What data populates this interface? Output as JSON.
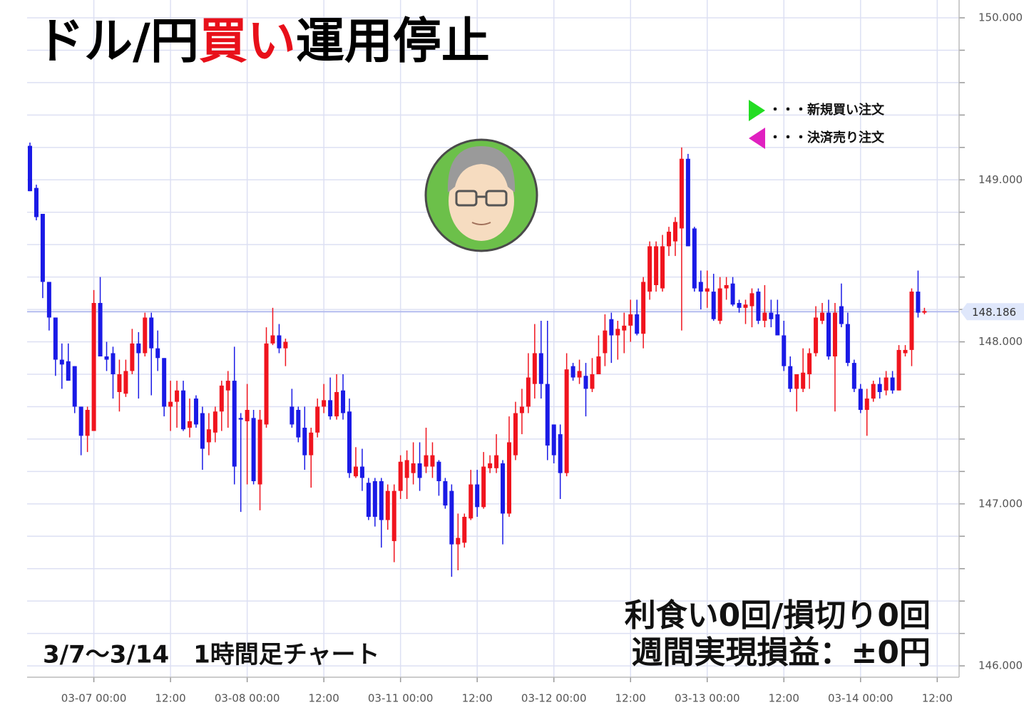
{
  "chart_data": {
    "type": "candlestick",
    "title_parts": [
      "ドル/円",
      "買い",
      "運用停止"
    ],
    "subtitle": "3/7～3/14　1時間足チャート",
    "annotations": [
      "利食い0回/損切り0回",
      "週間実現損益：±0円"
    ],
    "legend": [
      {
        "label": "・・・新規買い注文",
        "color": "#22dd22"
      },
      {
        "label": "・・・決済売り注文",
        "color": "#e020c0"
      }
    ],
    "up_color": "#f0141e",
    "down_color": "#1a1ae6",
    "current_price": 148.186,
    "ylim": [
      145.93,
      150.11
    ],
    "yticks": [
      {
        "value": 146,
        "label": "146.000"
      },
      {
        "value": 147,
        "label": "147.000"
      },
      {
        "value": 148,
        "label": "148.000"
      },
      {
        "value": 149,
        "label": "149.000"
      },
      {
        "value": 150,
        "label": "150.000"
      }
    ],
    "ygrid": [
      146.2,
      146.4,
      146.6,
      146.8,
      147.2,
      147.4,
      147.6,
      147.8,
      148.2,
      148.4,
      148.6,
      148.8,
      149.2,
      149.4,
      149.6,
      149.8
    ],
    "grid": true,
    "categories": [
      null,
      null,
      null,
      null,
      null,
      null,
      null,
      null,
      null,
      null,
      "03-07 00:00",
      null,
      null,
      null,
      null,
      null,
      null,
      null,
      null,
      null,
      null,
      null,
      "12:00",
      null,
      null,
      null,
      null,
      null,
      null,
      null,
      null,
      null,
      null,
      null,
      "03-08 00:00",
      null,
      null,
      null,
      null,
      null,
      null,
      null,
      null,
      null,
      null,
      null,
      "12:00",
      null,
      null,
      null,
      null,
      null,
      null,
      null,
      null,
      null,
      null,
      null,
      "03-11 00:00",
      null,
      null,
      null,
      null,
      null,
      null,
      null,
      null,
      null,
      null,
      null,
      "12:00",
      null,
      null,
      null,
      null,
      null,
      null,
      null,
      null,
      null,
      null,
      null,
      "03-12 00:00",
      null,
      null,
      null,
      null,
      null,
      null,
      null,
      null,
      null,
      null,
      null,
      "12:00",
      null,
      null,
      null,
      null,
      null,
      null,
      null,
      null,
      null,
      null,
      null,
      "03-13 00:00",
      null,
      null,
      null,
      null,
      null,
      null,
      null,
      null,
      null,
      null,
      null,
      "12:00",
      null,
      null,
      null,
      null,
      null,
      null,
      null,
      null,
      null,
      null,
      null,
      "03-14 00:00",
      null,
      null,
      null,
      null,
      null,
      null,
      null,
      null,
      null,
      null,
      null,
      "12:00",
      null
    ],
    "open": [
      149.21,
      148.95,
      148.79,
      148.37,
      148.15,
      147.89,
      147.88,
      147.85,
      147.6,
      147.42,
      147.45,
      148.24,
      147.91,
      147.93,
      147.69,
      147.68,
      147.82,
      147.99,
      147.93,
      148.15,
      147.96,
      147.9,
      147.6,
      147.63,
      147.7,
      147.47,
      147.65,
      147.56,
      147.38,
      147.44,
      147.57,
      147.7,
      147.76,
      147.53,
      147.51,
      147.53,
      147.12,
      147.49,
      147.99,
      148.04,
      147.96,
      147.6,
      147.58,
      147.47,
      147.3,
      147.44,
      147.6,
      147.64,
      147.54,
      147.7,
      147.57,
      147.17,
      147.23,
      147.13,
      147.14,
      147.14,
      146.9,
      146.77,
      147.08,
      147.16,
      147.19,
      147.25,
      147.23,
      147.23,
      147.26,
      147.14,
      147.08,
      146.75,
      146.76,
      146.91,
      147.12,
      146.98,
      147.22,
      147.22,
      147.25,
      146.94,
      147.3,
      147.56,
      147.6,
      147.74,
      147.93,
      147.74,
      147.49,
      147.43,
      147.19,
      147.85,
      147.78,
      147.79,
      147.71,
      147.8,
      147.93,
      148.14,
      148.04,
      148.07,
      148.1,
      148.17,
      148.05,
      148.31,
      148.35,
      148.33,
      148.59,
      148.62,
      148.7,
      149.13,
      148.7,
      148.37,
      148.31,
      148.31,
      148.13,
      148.33,
      148.36,
      148.24,
      148.21,
      148.22,
      148.31,
      148.13,
      148.18,
      148.17,
      148.04,
      147.85,
      147.71,
      147.71,
      147.8,
      147.93,
      148.13,
      148.18,
      147.91,
      148.22,
      148.11,
      147.87,
      147.71,
      147.58,
      147.65,
      147.74,
      147.7,
      147.78,
      147.7,
      147.93,
      147.95,
      148.31,
      148.18,
      null,
      null,
      null
    ],
    "high": [
      149.23,
      148.97,
      148.79,
      148.37,
      148.15,
      147.99,
      147.99,
      147.85,
      147.6,
      147.6,
      148.32,
      148.4,
      148.0,
      147.97,
      147.89,
      147.89,
      148.08,
      148.06,
      148.18,
      148.18,
      148.07,
      147.9,
      147.76,
      147.76,
      147.76,
      147.65,
      147.67,
      147.6,
      147.56,
      147.6,
      147.76,
      147.82,
      147.97,
      147.56,
      147.74,
      147.58,
      147.58,
      148.09,
      148.21,
      148.11,
      148.02,
      147.71,
      147.6,
      147.6,
      147.47,
      147.65,
      147.74,
      147.78,
      147.8,
      147.8,
      147.65,
      147.35,
      147.34,
      147.16,
      147.16,
      147.16,
      147.12,
      147.12,
      147.3,
      147.33,
      147.38,
      147.38,
      147.47,
      147.38,
      147.27,
      147.16,
      147.12,
      146.94,
      146.94,
      147.21,
      147.21,
      147.32,
      147.3,
      147.43,
      147.27,
      147.54,
      147.63,
      147.71,
      147.93,
      148.11,
      148.13,
      148.13,
      147.49,
      147.49,
      147.93,
      147.87,
      147.89,
      147.87,
      147.9,
      148.04,
      148.17,
      148.18,
      148.13,
      148.18,
      148.26,
      148.26,
      148.4,
      148.62,
      148.62,
      148.66,
      148.71,
      148.77,
      149.2,
      149.16,
      148.71,
      148.44,
      148.44,
      148.42,
      148.4,
      148.4,
      148.4,
      148.26,
      148.26,
      148.33,
      148.33,
      148.35,
      148.26,
      148.26,
      148.13,
      147.91,
      147.8,
      147.96,
      147.96,
      148.22,
      148.24,
      148.26,
      148.24,
      148.36,
      148.18,
      147.89,
      147.74,
      147.71,
      147.76,
      147.78,
      147.82,
      147.82,
      147.98,
      147.98,
      148.33,
      148.44,
      148.21,
      null,
      null,
      null
    ],
    "low": [
      148.93,
      148.75,
      148.27,
      148.07,
      147.79,
      147.71,
      147.76,
      147.56,
      147.3,
      147.32,
      147.45,
      147.91,
      147.82,
      147.65,
      147.57,
      147.66,
      147.8,
      147.65,
      147.91,
      147.67,
      147.82,
      147.54,
      147.45,
      147.47,
      147.45,
      147.41,
      147.47,
      147.21,
      147.3,
      147.38,
      147.45,
      147.47,
      147.12,
      146.95,
      147.12,
      147.12,
      146.96,
      147.47,
      147.98,
      147.93,
      147.85,
      147.47,
      147.38,
      147.21,
      147.1,
      147.41,
      147.56,
      147.52,
      147.52,
      147.52,
      147.16,
      147.16,
      147.08,
      146.9,
      146.86,
      146.73,
      146.84,
      146.64,
      147.03,
      147.03,
      147.12,
      147.08,
      147.19,
      147.16,
      147.05,
      146.97,
      146.55,
      146.59,
      146.73,
      146.9,
      146.92,
      146.97,
      147.19,
      147.19,
      146.75,
      146.92,
      147.27,
      147.43,
      147.56,
      147.65,
      147.65,
      147.27,
      147.25,
      147.03,
      147.17,
      147.76,
      147.74,
      147.54,
      147.69,
      147.8,
      147.85,
      147.87,
      147.89,
      147.93,
      148.0,
      148.04,
      147.96,
      148.26,
      148.31,
      148.31,
      148.53,
      148.53,
      148.07,
      148.59,
      148.31,
      148.2,
      148.21,
      148.13,
      148.11,
      148.26,
      148.22,
      148.18,
      148.11,
      148.09,
      148.11,
      148.09,
      148.09,
      148.04,
      147.82,
      147.69,
      147.57,
      147.69,
      147.71,
      147.91,
      148.11,
      147.89,
      147.57,
      148.09,
      147.85,
      147.69,
      147.56,
      147.42,
      147.63,
      147.65,
      147.67,
      147.68,
      147.7,
      147.91,
      147.85,
      148.15,
      148.17,
      null,
      null,
      null
    ],
    "close": [
      148.93,
      148.77,
      148.37,
      148.15,
      147.89,
      147.86,
      147.76,
      147.6,
      147.42,
      147.58,
      148.24,
      147.91,
      147.89,
      147.8,
      147.8,
      147.82,
      147.99,
      147.93,
      148.15,
      147.96,
      147.9,
      147.6,
      147.63,
      147.7,
      147.46,
      147.51,
      147.49,
      147.34,
      147.46,
      147.57,
      147.73,
      147.76,
      147.23,
      147.52,
      147.58,
      147.14,
      147.52,
      147.99,
      148.04,
      147.96,
      148.0,
      147.49,
      147.41,
      147.3,
      147.44,
      147.6,
      147.64,
      147.54,
      147.69,
      147.56,
      147.19,
      147.23,
      147.16,
      146.92,
      146.92,
      146.9,
      147.08,
      147.08,
      147.26,
      147.27,
      147.25,
      147.16,
      147.3,
      147.3,
      147.14,
      146.99,
      146.75,
      146.79,
      146.92,
      147.12,
      146.98,
      147.23,
      147.25,
      147.3,
      146.94,
      147.38,
      147.56,
      147.6,
      147.78,
      147.93,
      147.74,
      147.36,
      147.3,
      147.19,
      147.83,
      147.78,
      147.82,
      147.71,
      147.8,
      147.91,
      148.07,
      148.04,
      148.08,
      148.1,
      148.17,
      148.05,
      148.37,
      148.59,
      148.59,
      148.59,
      148.68,
      148.74,
      149.13,
      148.59,
      148.33,
      148.31,
      148.33,
      148.14,
      148.33,
      148.35,
      148.23,
      148.21,
      148.23,
      148.3,
      148.13,
      148.18,
      148.14,
      148.04,
      147.85,
      147.71,
      147.8,
      147.81,
      147.93,
      148.15,
      148.18,
      147.91,
      148.18,
      148.11,
      147.87,
      147.71,
      147.58,
      147.65,
      147.74,
      147.69,
      147.78,
      147.7,
      147.95,
      147.95,
      148.31,
      148.18,
      148.19,
      null,
      null,
      null
    ]
  }
}
